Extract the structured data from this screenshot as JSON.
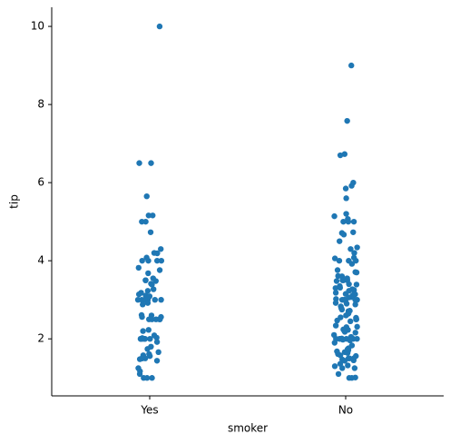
{
  "chart_data": {
    "type": "strip",
    "x_label": "smoker",
    "y_label": "tip",
    "color": "#1f77b4",
    "categories": [
      "Yes",
      "No"
    ],
    "values": [
      [
        10,
        6.5,
        6.5,
        5.65,
        5.16,
        5.16,
        5.0,
        5.0,
        4.73,
        4.3,
        4.19,
        4.0,
        4.0,
        4.0,
        4.0,
        3.76,
        3.68,
        3.55,
        3.5,
        3.48,
        3.41,
        3.27,
        3.23,
        3.18,
        3.11,
        3.09,
        3.0,
        3.0,
        3.0,
        3.0,
        3.0,
        3.0,
        2.92,
        2.88,
        2.6,
        2.56,
        2.5,
        2.5,
        2.5,
        2.5,
        2.5,
        2.23,
        2.2,
        2.09,
        2.03,
        2.0,
        2.0,
        2.0,
        2.0,
        2.0,
        2.0,
        1.92,
        1.8,
        1.74,
        1.66,
        1.61,
        1.58,
        1.5,
        1.5,
        1.5,
        1.48,
        1.44,
        1.25,
        1.17,
        1.1,
        1.0,
        1.0,
        1.0,
        3.5,
        4.08,
        1.56,
        2.56,
        3.82,
        2.0,
        3.39,
        2.61,
        4.2,
        2.02,
        3.14
      ],
      [
        9.0,
        7.58,
        6.73,
        6.7,
        6.0,
        5.92,
        5.85,
        5.6,
        5.2,
        5.14,
        5.07,
        5.0,
        5.0,
        5.0,
        4.71,
        4.67,
        4.5,
        4.34,
        4.3,
        4.2,
        4.08,
        4.06,
        4.0,
        4.0,
        4.0,
        3.92,
        3.76,
        3.71,
        3.61,
        3.6,
        3.55,
        3.5,
        3.5,
        3.5,
        3.48,
        3.4,
        3.39,
        3.35,
        3.31,
        3.27,
        3.25,
        3.23,
        3.18,
        3.15,
        3.12,
        3.07,
        3.02,
        3.0,
        3.0,
        3.0,
        3.0,
        3.0,
        2.98,
        2.92,
        2.88,
        2.83,
        2.75,
        2.71,
        2.64,
        2.6,
        2.55,
        2.5,
        2.5,
        2.47,
        2.45,
        2.34,
        2.31,
        2.3,
        2.24,
        2.23,
        2.2,
        2.18,
        2.1,
        2.05,
        2.01,
        2.0,
        2.0,
        2.0,
        2.0,
        2.0,
        2.0,
        1.98,
        1.96,
        1.83,
        1.76,
        1.71,
        1.68,
        1.66,
        1.64,
        1.61,
        1.58,
        1.56,
        1.5,
        1.5,
        1.5,
        1.47,
        1.45,
        1.44,
        1.36,
        1.32,
        1.3,
        1.25,
        1.25,
        1.1,
        1.01,
        1.0,
        1.0,
        3.3,
        2.72,
        2.54,
        1.73,
        2.9,
        3.06,
        2.65,
        3.7,
        2.16,
        1.9,
        4.73,
        3.14,
        2.78
      ]
    ],
    "ylim": [
      0.54,
      10.49
    ],
    "yticks": [
      2,
      4,
      6,
      8,
      10
    ]
  }
}
